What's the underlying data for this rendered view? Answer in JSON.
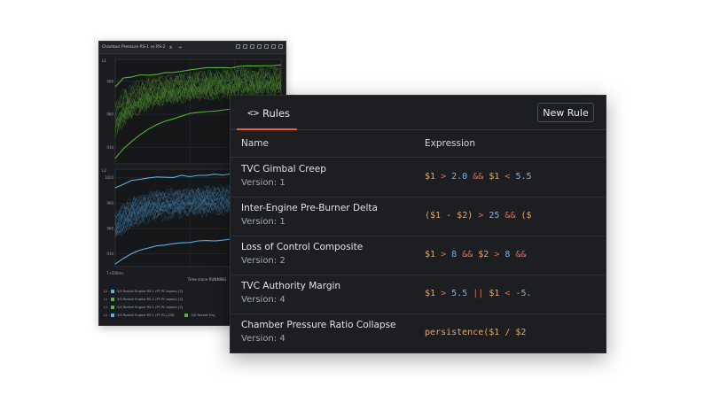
{
  "chart_window": {
    "title": "Chamber Pressure RS-1 vs RS-2",
    "close_glyph": "×",
    "arrow_glyph": "→",
    "tool_icons": [
      "expand-icon",
      "settings-icon",
      "layout-icon",
      "lock-icon",
      "fullscreen-icon",
      "grid-icon",
      "menu-icon"
    ]
  },
  "chart_data": [
    {
      "type": "line",
      "title": "",
      "panel_label": "L1",
      "xlabel": "",
      "ylabel": "",
      "x_tick_labels": [],
      "y_tick_labels": [
        "990",
        "960",
        "930"
      ],
      "ylim": [
        915,
        1010
      ],
      "grid": true,
      "series": [
        {
          "name": "S/S Rocket Engine RS-1 (PT-PC sigma) [2]",
          "color": "#56b33a",
          "kind": "upper_envelope",
          "x": [
            0,
            5,
            10,
            15,
            20,
            25,
            30,
            35,
            40,
            45,
            50,
            55,
            60,
            65,
            70,
            75,
            80,
            85,
            90,
            95,
            100
          ],
          "values": [
            985,
            993,
            995,
            995,
            996,
            997,
            997,
            998,
            999,
            1000,
            1001,
            1002,
            1002,
            1003,
            1003,
            1004,
            1004,
            1005,
            1005,
            1005,
            1005
          ]
        },
        {
          "name": "S/S Rocket Engine RS-1 (PT-PC sigma) [2]",
          "color": "#56b33a",
          "kind": "lower_envelope",
          "x": [
            0,
            5,
            10,
            15,
            20,
            25,
            30,
            35,
            40,
            45,
            50,
            55,
            60,
            65,
            70,
            75,
            80,
            85,
            90,
            95,
            100
          ],
          "values": [
            920,
            928,
            936,
            942,
            947,
            951,
            954,
            956,
            958,
            960,
            961,
            962,
            963,
            963,
            964,
            964,
            965,
            965,
            965,
            966,
            966
          ]
        },
        {
          "name": "S/S Rocket Engine RS-2 (PT-PC sigma) [2]",
          "color": "#4c8a2e",
          "kind": "band",
          "x": [
            0,
            5,
            10,
            15,
            20,
            25,
            30,
            35,
            40,
            45,
            50,
            55,
            60,
            65,
            70,
            75,
            80,
            85,
            90,
            95,
            100
          ],
          "values": [
            955,
            966,
            972,
            976,
            979,
            981,
            983,
            984,
            985,
            986,
            987,
            988,
            988,
            989,
            989,
            990,
            990,
            990,
            991,
            991,
            991
          ]
        }
      ]
    },
    {
      "type": "line",
      "title": "",
      "panel_label": "L2",
      "xlabel": "Time since RUNNING",
      "ylabel": "",
      "x_tick_labels": [
        "T+500ms"
      ],
      "y_tick_labels": [
        "1020",
        "990",
        "960",
        "930"
      ],
      "ylim": [
        915,
        1030
      ],
      "grid": true,
      "series": [
        {
          "name": "S/S Rocket Engine RS-1 (PT-PC sigma) [2]",
          "color": "#59b0e6",
          "kind": "upper_envelope",
          "x": [
            0,
            5,
            10,
            15,
            20,
            25,
            30,
            35,
            40,
            45,
            50,
            55,
            60,
            65,
            70,
            75,
            80,
            85,
            90,
            95,
            100
          ],
          "values": [
            1008,
            1013,
            1016,
            1018,
            1019,
            1020,
            1021,
            1021,
            1022,
            1022,
            1023,
            1023,
            1024,
            1024,
            1024,
            1025,
            1025,
            1025,
            1025,
            1026,
            1026
          ]
        },
        {
          "name": "S/S Rocket Engine RS-1 (PT-PC sigma) [2]",
          "color": "#59b0e6",
          "kind": "lower_envelope",
          "x": [
            0,
            5,
            10,
            15,
            20,
            25,
            30,
            35,
            40,
            45,
            50,
            55,
            60,
            65,
            70,
            75,
            80,
            85,
            90,
            95,
            100
          ],
          "values": [
            918,
            924,
            930,
            934,
            937,
            939,
            941,
            942,
            943,
            944,
            945,
            946,
            946,
            947,
            947,
            948,
            948,
            948,
            949,
            949,
            949
          ]
        },
        {
          "name": "S/S Rocket Engine RS-1 (PT-PC) [28]",
          "color": "#3d7fae",
          "kind": "band",
          "x": [
            0,
            5,
            10,
            15,
            20,
            25,
            30,
            35,
            40,
            45,
            50,
            55,
            60,
            65,
            70,
            75,
            80,
            85,
            90,
            95,
            100
          ],
          "values": [
            962,
            972,
            978,
            982,
            985,
            987,
            988,
            989,
            990,
            991,
            992,
            992,
            993,
            993,
            994,
            994,
            994,
            995,
            995,
            995,
            995
          ]
        }
      ]
    }
  ],
  "legend": [
    {
      "key": "L2",
      "color": "#59b0e6",
      "label": "S/S Rocket Engine RS-1 (PT-PC sigma) [2]",
      "extra_color": "",
      "extra_label": ""
    },
    {
      "key": "L1",
      "color": "#56b33a",
      "label": "S/S Rocket Engine RS-2 (PT-PC sigma) [2]",
      "extra_color": "",
      "extra_label": ""
    },
    {
      "key": "L1",
      "color": "#56b33a",
      "label": "S/S Rocket Engine RS-1 (PT-PC sigma) [2]",
      "extra_color": "",
      "extra_label": ""
    },
    {
      "key": "L2",
      "color": "#59b0e6",
      "label": "S/S Rocket Engine RS-1 (PT-PC) [28]",
      "extra_color": "#56b33a",
      "extra_label": "S/S Rocket Eng"
    }
  ],
  "rules_panel": {
    "tab_icon": "<>",
    "tab_label": "Rules",
    "new_rule_label": "New Rule",
    "columns": {
      "name": "Name",
      "expression": "Expression"
    },
    "accent_color": "#e5632c",
    "rows": [
      {
        "name": "TVC Gimbal Creep",
        "version": "Version: 1",
        "expression": "$1 > 2.0 && $1 < 5.5"
      },
      {
        "name": "Inter-Engine Pre-Burner Delta",
        "version": "Version: 1",
        "expression": "($1 - $2) > 25 && ($"
      },
      {
        "name": "Loss of Control Composite",
        "version": "Version: 2",
        "expression": "$1 > 8 && $2 > 8 &&"
      },
      {
        "name": "TVC Authority Margin",
        "version": "Version: 4",
        "expression": "$1 > 5.5 || $1 < -5."
      },
      {
        "name": "Chamber Pressure Ratio Collapse",
        "version": "Version: 4",
        "expression": "persistence($1 / $2"
      }
    ]
  }
}
